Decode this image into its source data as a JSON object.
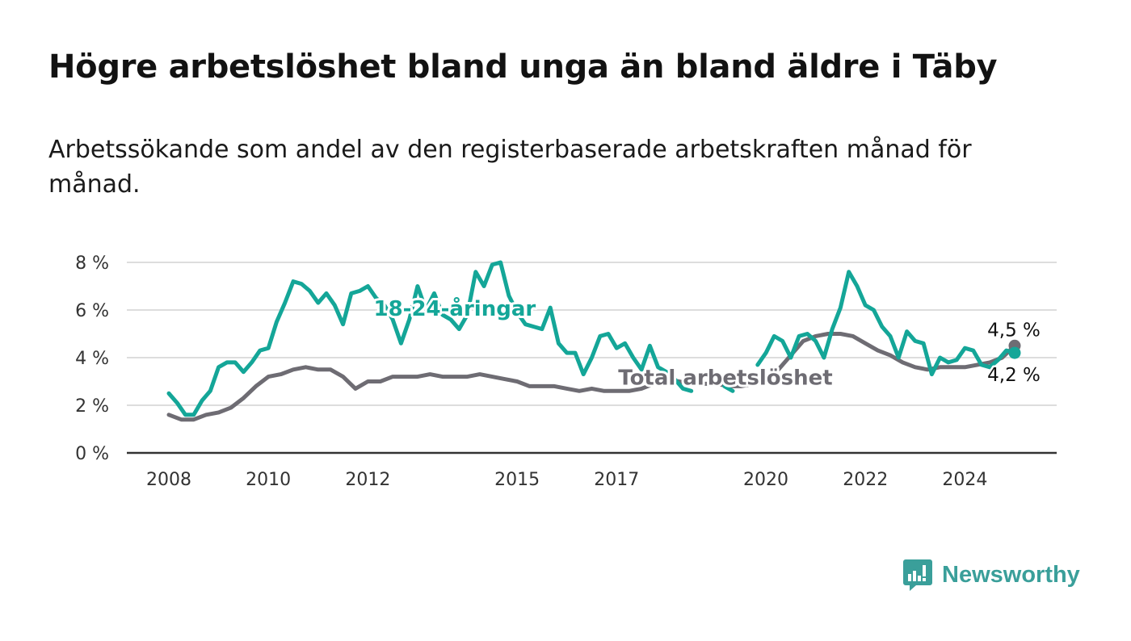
{
  "title": "Högre arbetslöshet bland unga än bland äldre i Täby",
  "subtitle": "Arbetssökande som andel av den registerbaserade arbetskraften månad för månad.",
  "brand": {
    "name": "Newsworthy",
    "icon": "newsworthy-logo-icon"
  },
  "colors": {
    "youth": "#14a698",
    "total": "#6e6c73",
    "grid": "#dddddd",
    "axis": "#333333"
  },
  "chart_data": {
    "type": "line",
    "title": "Högre arbetslöshet bland unga än bland äldre i Täby",
    "subtitle": "Arbetssökande som andel av den registerbaserade arbetskraften månad för månad.",
    "x_ticks": [
      "2008",
      "2010",
      "2012",
      "2015",
      "2017",
      "2020",
      "2022",
      "2024"
    ],
    "y_ticks": [
      "0 %",
      "2 %",
      "4 %",
      "6 %",
      "8 %"
    ],
    "ylim": [
      0,
      8
    ],
    "xlim": [
      "2008-01",
      "2025-01"
    ],
    "grid": true,
    "series": [
      {
        "name": "18-24-åringar",
        "color": "#14a698",
        "points": [
          [
            "2008-01",
            2.5
          ],
          [
            "2008-03",
            2.1
          ],
          [
            "2008-05",
            1.6
          ],
          [
            "2008-07",
            1.6
          ],
          [
            "2008-09",
            2.2
          ],
          [
            "2008-11",
            2.6
          ],
          [
            "2009-01",
            3.6
          ],
          [
            "2009-03",
            3.8
          ],
          [
            "2009-05",
            3.8
          ],
          [
            "2009-07",
            3.4
          ],
          [
            "2009-09",
            3.8
          ],
          [
            "2009-11",
            4.3
          ],
          [
            "2010-01",
            4.4
          ],
          [
            "2010-03",
            5.5
          ],
          [
            "2010-05",
            6.3
          ],
          [
            "2010-07",
            7.2
          ],
          [
            "2010-09",
            7.1
          ],
          [
            "2010-11",
            6.8
          ],
          [
            "2011-01",
            6.3
          ],
          [
            "2011-03",
            6.7
          ],
          [
            "2011-05",
            6.2
          ],
          [
            "2011-07",
            5.4
          ],
          [
            "2011-09",
            6.7
          ],
          [
            "2011-11",
            6.8
          ],
          [
            "2012-01",
            7.0
          ],
          [
            "2012-03",
            6.5
          ],
          [
            "2012-05",
            6.2
          ],
          [
            "2012-07",
            5.6
          ],
          [
            "2012-09",
            4.6
          ],
          [
            "2012-11",
            5.6
          ],
          [
            "2013-01",
            7.0
          ],
          [
            "2013-03",
            6.0
          ],
          [
            "2013-05",
            6.7
          ],
          [
            "2013-07",
            5.8
          ],
          [
            "2013-09",
            5.6
          ],
          [
            "2013-11",
            5.2
          ],
          [
            "2014-01",
            5.8
          ],
          [
            "2014-03",
            7.6
          ],
          [
            "2014-05",
            7.0
          ],
          [
            "2014-07",
            7.9
          ],
          [
            "2014-09",
            8.0
          ],
          [
            "2014-11",
            6.6
          ],
          [
            "2015-01",
            5.9
          ],
          [
            "2015-03",
            5.4
          ],
          [
            "2015-05",
            5.3
          ],
          [
            "2015-07",
            5.2
          ],
          [
            "2015-09",
            6.1
          ],
          [
            "2015-11",
            4.6
          ],
          [
            "2016-01",
            4.2
          ],
          [
            "2016-03",
            4.2
          ],
          [
            "2016-05",
            3.3
          ],
          [
            "2016-07",
            4.0
          ],
          [
            "2016-09",
            4.9
          ],
          [
            "2016-11",
            5.0
          ],
          [
            "2017-01",
            4.4
          ],
          [
            "2017-03",
            4.6
          ],
          [
            "2017-05",
            4.0
          ],
          [
            "2017-07",
            3.5
          ],
          [
            "2017-09",
            4.5
          ],
          [
            "2017-11",
            3.6
          ],
          [
            "2018-01",
            3.4
          ],
          [
            "2018-03",
            3.1
          ],
          [
            "2018-05",
            2.7
          ],
          [
            "2018-07",
            2.6
          ],
          [
            "2018-09",
            3.1
          ],
          [
            "2018-11",
            3.5
          ],
          [
            "2019-01",
            3.3
          ],
          [
            "2019-03",
            2.8
          ],
          [
            "2019-05",
            2.6
          ],
          [
            "2019-07",
            2.6
          ],
          [
            "2019-09",
            3.5
          ],
          [
            "2019-11",
            3.7
          ],
          [
            "2020-01",
            4.2
          ],
          [
            "2020-03",
            4.9
          ],
          [
            "2020-05",
            4.7
          ],
          [
            "2020-07",
            4.0
          ],
          [
            "2020-09",
            4.9
          ],
          [
            "2020-11",
            5.0
          ],
          [
            "2021-01",
            4.7
          ],
          [
            "2021-03",
            4.0
          ],
          [
            "2021-05",
            5.2
          ],
          [
            "2021-07",
            6.1
          ],
          [
            "2021-09",
            7.6
          ],
          [
            "2021-11",
            7.0
          ],
          [
            "2022-01",
            6.2
          ],
          [
            "2022-03",
            6.0
          ],
          [
            "2022-05",
            5.3
          ],
          [
            "2022-07",
            4.9
          ],
          [
            "2022-09",
            4.0
          ],
          [
            "2022-11",
            5.1
          ],
          [
            "2023-01",
            4.7
          ],
          [
            "2023-03",
            4.6
          ],
          [
            "2023-05",
            3.3
          ],
          [
            "2023-07",
            4.0
          ],
          [
            "2023-09",
            3.8
          ],
          [
            "2023-11",
            3.9
          ],
          [
            "2024-01",
            4.4
          ],
          [
            "2024-03",
            4.3
          ],
          [
            "2024-05",
            3.7
          ],
          [
            "2024-07",
            3.6
          ],
          [
            "2024-09",
            3.9
          ],
          [
            "2024-11",
            4.3
          ],
          [
            "2025-01",
            4.2
          ]
        ]
      },
      {
        "name": "Total arbetslöshet",
        "color": "#6e6c73",
        "points": [
          [
            "2008-01",
            1.6
          ],
          [
            "2008-04",
            1.4
          ],
          [
            "2008-07",
            1.4
          ],
          [
            "2008-10",
            1.6
          ],
          [
            "2009-01",
            1.7
          ],
          [
            "2009-04",
            1.9
          ],
          [
            "2009-07",
            2.3
          ],
          [
            "2009-10",
            2.8
          ],
          [
            "2010-01",
            3.2
          ],
          [
            "2010-04",
            3.3
          ],
          [
            "2010-07",
            3.5
          ],
          [
            "2010-10",
            3.6
          ],
          [
            "2011-01",
            3.5
          ],
          [
            "2011-04",
            3.5
          ],
          [
            "2011-07",
            3.2
          ],
          [
            "2011-10",
            2.7
          ],
          [
            "2012-01",
            3.0
          ],
          [
            "2012-04",
            3.0
          ],
          [
            "2012-07",
            3.2
          ],
          [
            "2012-10",
            3.2
          ],
          [
            "2013-01",
            3.2
          ],
          [
            "2013-04",
            3.3
          ],
          [
            "2013-07",
            3.2
          ],
          [
            "2013-10",
            3.2
          ],
          [
            "2014-01",
            3.2
          ],
          [
            "2014-04",
            3.3
          ],
          [
            "2014-07",
            3.2
          ],
          [
            "2014-10",
            3.1
          ],
          [
            "2015-01",
            3.0
          ],
          [
            "2015-04",
            2.8
          ],
          [
            "2015-07",
            2.8
          ],
          [
            "2015-10",
            2.8
          ],
          [
            "2016-01",
            2.7
          ],
          [
            "2016-04",
            2.6
          ],
          [
            "2016-07",
            2.7
          ],
          [
            "2016-10",
            2.6
          ],
          [
            "2017-01",
            2.6
          ],
          [
            "2017-04",
            2.6
          ],
          [
            "2017-07",
            2.7
          ],
          [
            "2017-10",
            2.9
          ],
          [
            "2018-01",
            3.1
          ],
          [
            "2018-04",
            3.0
          ],
          [
            "2018-07",
            2.9
          ],
          [
            "2018-10",
            2.9
          ],
          [
            "2019-01",
            2.9
          ],
          [
            "2019-04",
            2.8
          ],
          [
            "2019-07",
            2.8
          ],
          [
            "2019-10",
            2.9
          ],
          [
            "2020-01",
            3.1
          ],
          [
            "2020-04",
            3.5
          ],
          [
            "2020-07",
            4.1
          ],
          [
            "2020-10",
            4.7
          ],
          [
            "2021-01",
            4.9
          ],
          [
            "2021-04",
            5.0
          ],
          [
            "2021-07",
            5.0
          ],
          [
            "2021-10",
            4.9
          ],
          [
            "2022-01",
            4.6
          ],
          [
            "2022-04",
            4.3
          ],
          [
            "2022-07",
            4.1
          ],
          [
            "2022-10",
            3.8
          ],
          [
            "2023-01",
            3.6
          ],
          [
            "2023-04",
            3.5
          ],
          [
            "2023-07",
            3.6
          ],
          [
            "2023-10",
            3.6
          ],
          [
            "2024-01",
            3.6
          ],
          [
            "2024-04",
            3.7
          ],
          [
            "2024-07",
            3.8
          ],
          [
            "2024-10",
            4.0
          ],
          [
            "2025-01",
            4.5
          ]
        ]
      }
    ],
    "gaps": {
      "18-24-åringar": [
        [
          "2018-08",
          "2019-02"
        ],
        [
          "2019-05",
          "2019-11"
        ]
      ]
    },
    "series_labels": [
      {
        "series": "18-24-åringar",
        "text": "18-24-åringar",
        "at": [
          "2012-02",
          6.1
        ]
      },
      {
        "series": "Total arbetslöshet",
        "text": "Total arbetslöshet",
        "at": [
          "2017-01",
          3.2
        ]
      }
    ],
    "end_labels": [
      {
        "series": "Total arbetslöshet",
        "text": "4,5 %",
        "value": 4.5
      },
      {
        "series": "18-24-åringar",
        "text": "4,2 %",
        "value": 4.2
      }
    ]
  }
}
